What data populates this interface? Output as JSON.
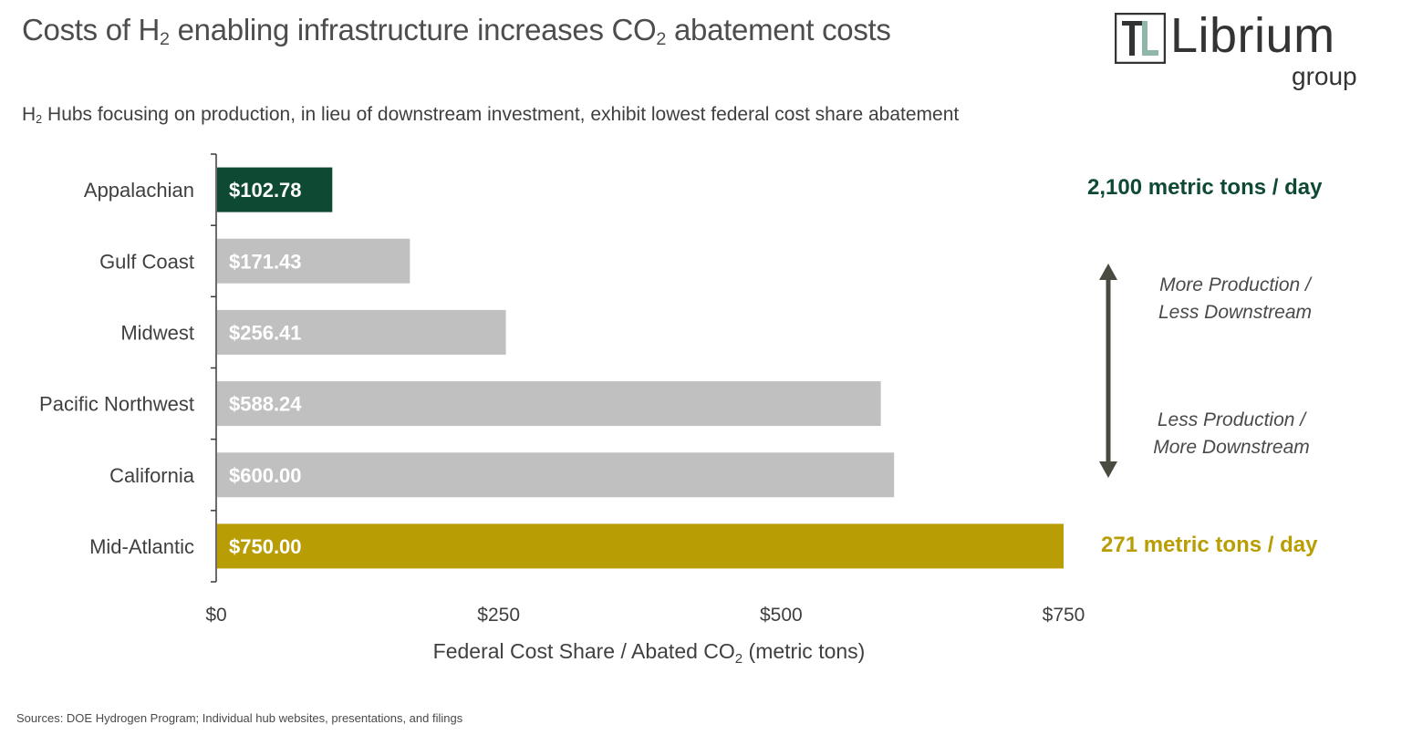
{
  "header": {
    "title_parts": [
      "Costs of H",
      "2",
      " enabling infrastructure increases CO",
      "2",
      " abatement costs"
    ],
    "subtitle_parts": [
      "H",
      "2",
      " Hubs focusing on production, in lieu of downstream investment, exhibit lowest federal cost share abatement"
    ]
  },
  "logo": {
    "mark_icon": "librium-tl-mark-icon",
    "word": "Librium",
    "sub": "group"
  },
  "chart_data": {
    "type": "bar",
    "orientation": "horizontal",
    "categories": [
      "Appalachian",
      "Gulf Coast",
      "Midwest",
      "Pacific Northwest",
      "California",
      "Mid-Atlantic"
    ],
    "values": [
      102.78,
      171.43,
      256.41,
      588.24,
      600.0,
      750.0
    ],
    "data_labels": [
      "$102.78",
      "$171.43",
      "$256.41",
      "$588.24",
      "$600.00",
      "$750.00"
    ],
    "bar_colors": [
      "#0e4a33",
      "#c0c0c0",
      "#c0c0c0",
      "#c0c0c0",
      "#c0c0c0",
      "#b89e04"
    ],
    "xlim": [
      0,
      750
    ],
    "xticks": [
      0,
      250,
      500,
      750
    ],
    "xtick_labels": [
      "$0",
      "$250",
      "$500",
      "$750"
    ],
    "xlabel_parts": [
      "Federal Cost Share / Abated CO",
      "2",
      " (metric tons)"
    ],
    "grid": false
  },
  "annotations": {
    "top": {
      "text": "2,100 metric tons / day",
      "color": "#0e4a33"
    },
    "bottom": {
      "text": "271 metric tons / day",
      "color": "#b89e04"
    },
    "arrow_color": "#4a4a40",
    "upper_note": [
      "More Production /",
      "Less Downstream"
    ],
    "lower_note": [
      "Less Production /",
      "More Downstream"
    ]
  },
  "source": "Sources: DOE Hydrogen Program; Individual hub websites, presentations, and filings"
}
